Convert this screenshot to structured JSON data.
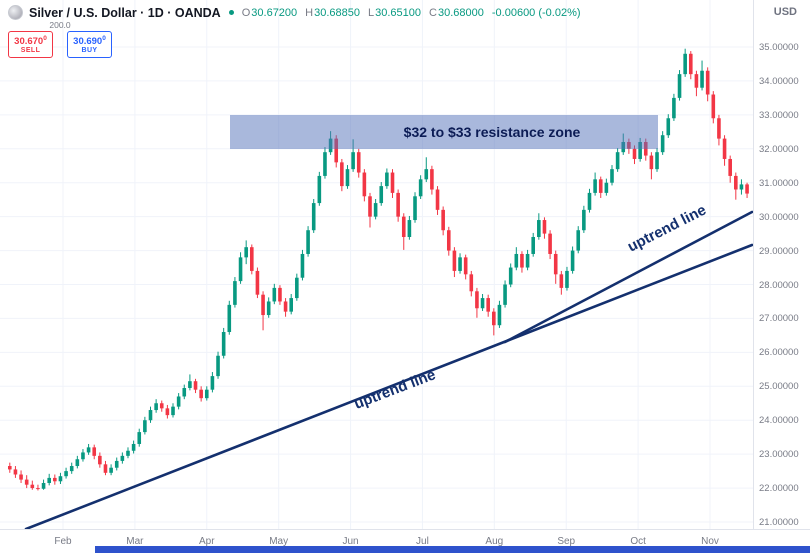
{
  "header": {
    "symbol_title": "Silver / U.S. Dollar · 1D · OANDA",
    "ohlc": {
      "o_label": "O",
      "o": "30.67200",
      "h_label": "H",
      "h": "30.68850",
      "l_label": "L",
      "l": "30.65100",
      "c_label": "C",
      "c": "30.68000",
      "change": "-0.00600 (-0.02%)"
    },
    "currency_label": "USD"
  },
  "trade_panel": {
    "spread": "200.0",
    "sell": {
      "main": "30.670",
      "sup": "0",
      "label": "SELL"
    },
    "buy": {
      "main": "30.690",
      "sup": "0",
      "label": "BUY"
    }
  },
  "annotations": {
    "resistance_label": "$32 to $33 resistance zone",
    "uptrend_label_1": "uptrend line",
    "uptrend_label_2": "uptrend line"
  },
  "colors": {
    "up": "#089981",
    "down": "#f23645",
    "trendline": "#14306e",
    "grid": "#f0f3fa",
    "axis_text": "#787b86",
    "resistance_fill": "rgba(84,114,186,0.5)",
    "resistance_text": "#0c1c55"
  },
  "chart_data": {
    "type": "candlestick",
    "symbol": "Silver / U.S. Dollar",
    "exchange": "OANDA",
    "timeframe": "1D",
    "x_axis": {
      "ticks": [
        "Feb",
        "Mar",
        "Apr",
        "May",
        "Jun",
        "Jul",
        "Aug",
        "Sep",
        "Oct",
        "Nov"
      ]
    },
    "y_axis": {
      "min": 21,
      "max": 35,
      "tick_step": 1,
      "decimals": 5
    },
    "last_bar": {
      "open": 30.672,
      "high": 30.6885,
      "low": 30.651,
      "close": 30.68,
      "change": -0.006,
      "change_pct": "-0.02%"
    },
    "annotations": {
      "resistance_zone": {
        "label": "$32 to $33 resistance zone",
        "price_from": 32,
        "price_to": 33
      },
      "trendlines": [
        {
          "label": "uptrend line",
          "description": "long uptrend support from Feb low toward 29 area"
        },
        {
          "label": "uptrend line",
          "description": "steeper uptrend support from Aug low toward 30 area"
        }
      ]
    },
    "candles": [
      [
        22.65,
        22.75,
        22.45,
        22.55
      ],
      [
        22.55,
        22.65,
        22.3,
        22.4
      ],
      [
        22.4,
        22.52,
        22.15,
        22.25
      ],
      [
        22.25,
        22.38,
        22.0,
        22.1
      ],
      [
        22.1,
        22.22,
        21.95,
        22.0
      ],
      [
        22.0,
        22.1,
        21.93,
        21.98
      ],
      [
        21.98,
        22.25,
        21.95,
        22.15
      ],
      [
        22.15,
        22.42,
        22.08,
        22.3
      ],
      [
        22.3,
        22.4,
        22.1,
        22.2
      ],
      [
        22.2,
        22.45,
        22.12,
        22.35
      ],
      [
        22.35,
        22.6,
        22.28,
        22.5
      ],
      [
        22.5,
        22.75,
        22.42,
        22.65
      ],
      [
        22.65,
        22.95,
        22.58,
        22.85
      ],
      [
        22.85,
        23.15,
        22.78,
        23.05
      ],
      [
        23.05,
        23.3,
        22.98,
        23.2
      ],
      [
        23.2,
        23.28,
        22.85,
        22.95
      ],
      [
        22.95,
        23.05,
        22.6,
        22.7
      ],
      [
        22.7,
        22.8,
        22.38,
        22.45
      ],
      [
        22.45,
        22.7,
        22.38,
        22.6
      ],
      [
        22.6,
        22.9,
        22.52,
        22.8
      ],
      [
        22.8,
        23.05,
        22.72,
        22.95
      ],
      [
        22.95,
        23.2,
        22.88,
        23.1
      ],
      [
        23.1,
        23.4,
        23.02,
        23.3
      ],
      [
        23.3,
        23.75,
        23.22,
        23.65
      ],
      [
        23.65,
        24.1,
        23.58,
        24.0
      ],
      [
        24.0,
        24.4,
        23.92,
        24.3
      ],
      [
        24.3,
        24.62,
        24.22,
        24.5
      ],
      [
        24.5,
        24.58,
        24.25,
        24.35
      ],
      [
        24.35,
        24.45,
        24.05,
        24.15
      ],
      [
        24.15,
        24.5,
        24.08,
        24.4
      ],
      [
        24.4,
        24.8,
        24.32,
        24.7
      ],
      [
        24.7,
        25.05,
        24.62,
        24.95
      ],
      [
        24.95,
        25.35,
        24.88,
        25.15
      ],
      [
        25.15,
        25.22,
        24.8,
        24.9
      ],
      [
        24.9,
        25.0,
        24.55,
        24.65
      ],
      [
        24.65,
        25.0,
        24.58,
        24.9
      ],
      [
        24.9,
        25.42,
        24.82,
        25.3
      ],
      [
        25.3,
        26.02,
        25.22,
        25.9
      ],
      [
        25.9,
        26.72,
        25.82,
        26.6
      ],
      [
        26.6,
        27.52,
        26.52,
        27.4
      ],
      [
        27.4,
        28.22,
        27.32,
        28.1
      ],
      [
        28.1,
        28.95,
        28.02,
        28.8
      ],
      [
        28.8,
        29.3,
        28.6,
        29.1
      ],
      [
        29.1,
        29.18,
        28.3,
        28.4
      ],
      [
        28.4,
        28.5,
        27.6,
        27.7
      ],
      [
        27.7,
        27.8,
        26.65,
        27.1
      ],
      [
        27.1,
        27.62,
        27.02,
        27.5
      ],
      [
        27.5,
        28.02,
        27.42,
        27.9
      ],
      [
        27.9,
        27.98,
        27.4,
        27.5
      ],
      [
        27.5,
        27.6,
        27.05,
        27.2
      ],
      [
        27.2,
        27.72,
        27.12,
        27.6
      ],
      [
        27.6,
        28.32,
        27.52,
        28.2
      ],
      [
        28.2,
        29.02,
        28.12,
        28.9
      ],
      [
        28.9,
        29.72,
        28.82,
        29.6
      ],
      [
        29.6,
        30.52,
        29.52,
        30.4
      ],
      [
        30.4,
        31.32,
        30.32,
        31.2
      ],
      [
        31.2,
        32.05,
        31.12,
        31.9
      ],
      [
        31.9,
        32.52,
        31.82,
        32.3
      ],
      [
        32.3,
        32.4,
        31.45,
        31.6
      ],
      [
        31.6,
        31.7,
        30.75,
        30.9
      ],
      [
        30.9,
        31.52,
        30.82,
        31.4
      ],
      [
        31.4,
        32.28,
        31.32,
        31.9
      ],
      [
        31.9,
        32.0,
        31.15,
        31.3
      ],
      [
        31.3,
        31.4,
        30.45,
        30.6
      ],
      [
        30.6,
        30.7,
        29.68,
        30.0
      ],
      [
        30.0,
        30.52,
        29.92,
        30.4
      ],
      [
        30.4,
        31.02,
        30.32,
        30.9
      ],
      [
        30.9,
        31.42,
        30.82,
        31.3
      ],
      [
        31.3,
        31.4,
        30.55,
        30.7
      ],
      [
        30.7,
        30.8,
        29.85,
        30.0
      ],
      [
        30.0,
        30.1,
        29.02,
        29.4
      ],
      [
        29.4,
        30.02,
        29.32,
        29.9
      ],
      [
        29.9,
        30.72,
        29.82,
        30.6
      ],
      [
        30.6,
        31.22,
        30.52,
        31.1
      ],
      [
        31.1,
        31.75,
        31.02,
        31.4
      ],
      [
        31.4,
        31.5,
        30.65,
        30.8
      ],
      [
        30.8,
        30.9,
        30.05,
        30.2
      ],
      [
        30.2,
        30.3,
        29.45,
        29.6
      ],
      [
        29.6,
        29.7,
        28.85,
        29.0
      ],
      [
        29.0,
        29.1,
        28.22,
        28.4
      ],
      [
        28.4,
        28.92,
        28.32,
        28.8
      ],
      [
        28.8,
        28.88,
        28.15,
        28.3
      ],
      [
        28.3,
        28.4,
        27.65,
        27.8
      ],
      [
        27.8,
        27.9,
        27.02,
        27.3
      ],
      [
        27.3,
        27.72,
        27.22,
        27.6
      ],
      [
        27.6,
        27.7,
        27.05,
        27.2
      ],
      [
        27.2,
        27.3,
        26.5,
        26.8
      ],
      [
        26.8,
        27.52,
        26.72,
        27.4
      ],
      [
        27.4,
        28.12,
        27.32,
        28.0
      ],
      [
        28.0,
        28.62,
        27.92,
        28.5
      ],
      [
        28.5,
        29.1,
        28.42,
        28.9
      ],
      [
        28.9,
        28.98,
        28.35,
        28.5
      ],
      [
        28.5,
        29.02,
        28.42,
        28.9
      ],
      [
        28.9,
        29.52,
        28.82,
        29.4
      ],
      [
        29.4,
        30.1,
        29.32,
        29.9
      ],
      [
        29.9,
        29.98,
        29.35,
        29.5
      ],
      [
        29.5,
        29.6,
        28.75,
        28.9
      ],
      [
        28.9,
        29.0,
        28.02,
        28.3
      ],
      [
        28.3,
        28.4,
        27.7,
        27.9
      ],
      [
        27.9,
        28.52,
        27.82,
        28.4
      ],
      [
        28.4,
        29.12,
        28.32,
        29.0
      ],
      [
        29.0,
        29.72,
        28.92,
        29.6
      ],
      [
        29.6,
        30.32,
        29.52,
        30.2
      ],
      [
        30.2,
        30.82,
        30.12,
        30.7
      ],
      [
        30.7,
        31.3,
        30.62,
        31.1
      ],
      [
        31.1,
        31.18,
        30.55,
        30.7
      ],
      [
        30.7,
        31.12,
        30.62,
        31.0
      ],
      [
        31.0,
        31.52,
        30.92,
        31.4
      ],
      [
        31.4,
        32.02,
        31.32,
        31.9
      ],
      [
        31.9,
        32.45,
        31.82,
        32.2
      ],
      [
        32.2,
        32.3,
        31.85,
        32.0
      ],
      [
        32.0,
        32.1,
        31.55,
        31.7
      ],
      [
        31.7,
        32.32,
        31.62,
        32.2
      ],
      [
        32.2,
        32.3,
        31.65,
        31.8
      ],
      [
        31.8,
        31.9,
        31.1,
        31.4
      ],
      [
        31.4,
        32.02,
        31.32,
        31.9
      ],
      [
        31.9,
        32.52,
        31.82,
        32.4
      ],
      [
        32.4,
        33.02,
        32.32,
        32.9
      ],
      [
        32.9,
        33.62,
        32.82,
        33.5
      ],
      [
        33.5,
        34.32,
        33.42,
        34.2
      ],
      [
        34.2,
        34.95,
        34.12,
        34.8
      ],
      [
        34.8,
        34.88,
        34.05,
        34.2
      ],
      [
        34.2,
        34.3,
        33.55,
        33.8
      ],
      [
        33.8,
        34.6,
        33.72,
        34.3
      ],
      [
        34.3,
        34.4,
        33.4,
        33.6
      ],
      [
        33.6,
        33.7,
        32.75,
        32.9
      ],
      [
        32.9,
        33.0,
        32.1,
        32.3
      ],
      [
        32.3,
        32.4,
        31.5,
        31.7
      ],
      [
        31.7,
        31.8,
        31.0,
        31.2
      ],
      [
        31.2,
        31.3,
        30.5,
        30.8
      ],
      [
        30.8,
        31.1,
        30.65,
        30.95
      ],
      [
        30.95,
        31.0,
        30.55,
        30.68
      ]
    ]
  }
}
